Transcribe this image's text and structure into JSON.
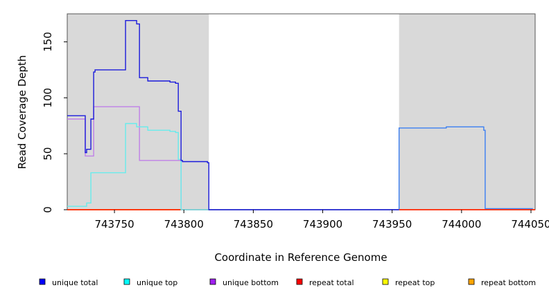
{
  "chart_data": {
    "type": "line",
    "title": "",
    "xlabel": "Coordinate in Reference Genome",
    "ylabel": "Read Coverage Depth",
    "xlim": [
      743716,
      744053
    ],
    "ylim": [
      0,
      175
    ],
    "xticks": [
      743750,
      743800,
      743850,
      743900,
      743950,
      744000,
      744050
    ],
    "xtick_labels": [
      "743750",
      "743800",
      "743850",
      "743900",
      "743950",
      "744000",
      "744050"
    ],
    "yticks": [
      0,
      50,
      100,
      150
    ],
    "ytick_labels": [
      "0",
      "50",
      "100",
      "150"
    ],
    "grid": false,
    "legend_position": "bottom",
    "shaded_regions": [
      {
        "x": [
          743716,
          743818
        ],
        "color": "#d9d9d9"
      },
      {
        "x": [
          743955,
          744053
        ],
        "color": "#d9d9d9"
      }
    ],
    "series": [
      {
        "name": "unique total",
        "color": "#1a1adb",
        "marker_color": "#0000ff",
        "points": [
          [
            743716,
            84
          ],
          [
            743729,
            84
          ],
          [
            743729,
            51
          ],
          [
            743730,
            51
          ],
          [
            743730,
            54
          ],
          [
            743733,
            54
          ],
          [
            743733,
            81
          ],
          [
            743735,
            81
          ],
          [
            743735,
            123
          ],
          [
            743736,
            123
          ],
          [
            743736,
            125
          ],
          [
            743758,
            125
          ],
          [
            743758,
            169
          ],
          [
            743766,
            169
          ],
          [
            743766,
            166
          ],
          [
            743768,
            166
          ],
          [
            743768,
            118
          ],
          [
            743774,
            118
          ],
          [
            743774,
            115
          ],
          [
            743790,
            115
          ],
          [
            743790,
            114
          ],
          [
            743794,
            114
          ],
          [
            743794,
            113
          ],
          [
            743796,
            113
          ],
          [
            743796,
            88
          ],
          [
            743798,
            88
          ],
          [
            743798,
            44
          ],
          [
            743799,
            44
          ],
          [
            743799,
            43
          ],
          [
            743817,
            43
          ],
          [
            743817,
            42
          ],
          [
            743818,
            42
          ],
          [
            743818,
            0
          ],
          [
            743955,
            0
          ]
        ]
      },
      {
        "name": "unique top",
        "color": "#66ecec",
        "marker_color": "#00ffff",
        "points": [
          [
            743716,
            3
          ],
          [
            743730,
            3
          ],
          [
            743730,
            6
          ],
          [
            743733,
            6
          ],
          [
            743733,
            33
          ],
          [
            743758,
            33
          ],
          [
            743758,
            77
          ],
          [
            743766,
            77
          ],
          [
            743766,
            74
          ],
          [
            743774,
            74
          ],
          [
            743774,
            71
          ],
          [
            743790,
            71
          ],
          [
            743790,
            70
          ],
          [
            743794,
            70
          ],
          [
            743794,
            69
          ],
          [
            743796,
            69
          ],
          [
            743796,
            45
          ],
          [
            743798,
            45
          ],
          [
            743798,
            0
          ],
          [
            743955,
            0
          ]
        ]
      },
      {
        "name": "unique bottom",
        "color": "#c080e8",
        "marker_color": "#a020f0",
        "points": [
          [
            743716,
            81
          ],
          [
            743729,
            81
          ],
          [
            743729,
            48
          ],
          [
            743735,
            48
          ],
          [
            743735,
            92
          ],
          [
            743768,
            92
          ],
          [
            743768,
            44
          ],
          [
            743798,
            44
          ],
          [
            743798,
            0
          ],
          [
            743955,
            0
          ]
        ]
      },
      {
        "name": "repeat total",
        "color": "#ff0000",
        "marker_color": "#ff0000",
        "points": [
          [
            743716,
            0
          ],
          [
            744053,
            0
          ]
        ]
      },
      {
        "name": "repeat top",
        "color": "#ffff00",
        "marker_color": "#ffff00",
        "points": [
          [
            743716,
            0
          ],
          [
            744053,
            0
          ]
        ]
      },
      {
        "name": "repeat bottom",
        "color": "#f0a020",
        "marker_color": "#ffa500",
        "points": [
          [
            743716,
            0
          ],
          [
            743798,
            0
          ]
        ]
      },
      {
        "name": "",
        "color": "#3a7ff2",
        "marker_color": "#3a7ff2",
        "points": [
          [
            743955,
            0
          ],
          [
            743955,
            73
          ],
          [
            743989,
            73
          ],
          [
            743989,
            74
          ],
          [
            744016,
            74
          ],
          [
            744016,
            71
          ],
          [
            744017,
            71
          ],
          [
            744017,
            1
          ],
          [
            744051,
            1
          ],
          [
            744051,
            0
          ]
        ]
      }
    ]
  },
  "legend": {
    "items": [
      {
        "label": "unique total",
        "color": "#0000ff"
      },
      {
        "label": "unique top",
        "color": "#00ffff"
      },
      {
        "label": "unique bottom",
        "color": "#a020f0"
      },
      {
        "label": "repeat total",
        "color": "#ff0000"
      },
      {
        "label": "repeat top",
        "color": "#ffff00"
      },
      {
        "label": "repeat bottom",
        "color": "#ffa500"
      }
    ]
  }
}
